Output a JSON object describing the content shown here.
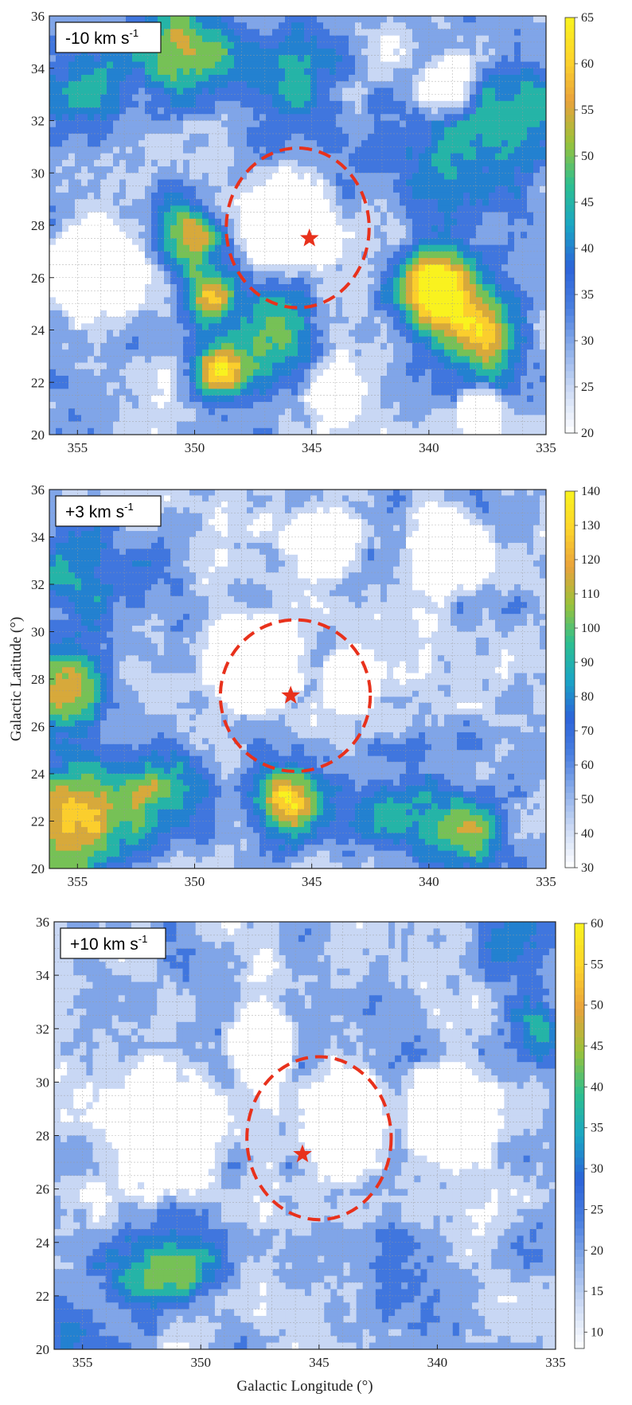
{
  "chart_data": [
    {
      "type": "heatmap",
      "panel_label": "-10 km s",
      "panel_label_sup": "-1",
      "xlabel": "",
      "ylabel": "",
      "xlim": [
        356.2,
        335
      ],
      "ylim": [
        20,
        36
      ],
      "xticks": [
        355,
        350,
        345,
        340,
        335
      ],
      "yticks": [
        20,
        22,
        24,
        26,
        28,
        30,
        32,
        34,
        36
      ],
      "colorbar": {
        "min": 20,
        "max": 65,
        "ticks": [
          20,
          25,
          30,
          35,
          40,
          45,
          50,
          55,
          60,
          65
        ]
      },
      "circle": {
        "center_l": 345.6,
        "center_b": 27.9,
        "radius_deg": 3.05,
        "color": "#e8311c"
      },
      "star": {
        "l": 345.1,
        "b": 27.5,
        "color": "#e8311c"
      },
      "grid": true,
      "features": [
        {
          "l": 350.2,
          "b": 27.6,
          "amp": 28,
          "s": 0.9
        },
        {
          "l": 349.4,
          "b": 25.2,
          "amp": 28,
          "s": 0.8
        },
        {
          "l": 348.9,
          "b": 22.6,
          "amp": 38,
          "s": 0.8
        },
        {
          "l": 346.5,
          "b": 23.8,
          "amp": 22,
          "s": 1.2
        },
        {
          "l": 339.6,
          "b": 25.6,
          "amp": 40,
          "s": 1.2
        },
        {
          "l": 337.7,
          "b": 23.7,
          "amp": 32,
          "s": 1.1
        },
        {
          "l": 345.8,
          "b": 33.6,
          "amp": 18,
          "s": 1.6
        },
        {
          "l": 350.5,
          "b": 34.8,
          "amp": 24,
          "s": 1.4
        },
        {
          "l": 354.5,
          "b": 33.2,
          "amp": 14,
          "s": 1.6
        },
        {
          "l": 338.5,
          "b": 30.6,
          "amp": 16,
          "s": 1.6
        },
        {
          "l": 335.8,
          "b": 33.0,
          "amp": 14,
          "s": 1.4
        }
      ],
      "voids": [
        {
          "l": 346.0,
          "b": 28.2,
          "r": 2.6
        },
        {
          "l": 354.2,
          "b": 26.2,
          "r": 2.4
        },
        {
          "l": 339.2,
          "b": 33.3,
          "r": 1.6
        },
        {
          "l": 343.8,
          "b": 21.5,
          "r": 1.8
        },
        {
          "l": 337.8,
          "b": 21.0,
          "r": 1.2
        }
      ]
    },
    {
      "type": "heatmap",
      "panel_label": "+3 km s",
      "panel_label_sup": "-1",
      "xlabel": "",
      "ylabel": "Galactic Latitude (°)",
      "xlim": [
        356.2,
        335
      ],
      "ylim": [
        20,
        36
      ],
      "xticks": [
        355,
        350,
        345,
        340,
        335
      ],
      "yticks": [
        20,
        22,
        24,
        26,
        28,
        30,
        32,
        34,
        36
      ],
      "colorbar": {
        "min": 30,
        "max": 140,
        "ticks": [
          30,
          40,
          50,
          60,
          70,
          80,
          90,
          100,
          110,
          120,
          130,
          140
        ]
      },
      "circle": {
        "center_l": 345.7,
        "center_b": 27.3,
        "radius_deg": 3.2,
        "color": "#e8311c"
      },
      "star": {
        "l": 345.9,
        "b": 27.3,
        "color": "#e8311c"
      },
      "grid": true,
      "features": [
        {
          "l": 355.2,
          "b": 22.0,
          "amp": 85,
          "s": 1.6
        },
        {
          "l": 355.5,
          "b": 27.5,
          "amp": 65,
          "s": 1.3
        },
        {
          "l": 351.3,
          "b": 23.3,
          "amp": 55,
          "s": 1.4
        },
        {
          "l": 346.0,
          "b": 22.6,
          "amp": 85,
          "s": 1.1
        },
        {
          "l": 338.3,
          "b": 21.5,
          "amp": 60,
          "s": 1.2
        },
        {
          "l": 341.5,
          "b": 22.5,
          "amp": 35,
          "s": 1.4
        },
        {
          "l": 355.0,
          "b": 32.5,
          "amp": 30,
          "s": 1.8
        }
      ],
      "voids": [
        {
          "l": 347.5,
          "b": 28.8,
          "r": 2.6
        },
        {
          "l": 343.3,
          "b": 28.0,
          "r": 1.6
        },
        {
          "l": 339.0,
          "b": 33.5,
          "r": 2.2
        },
        {
          "l": 344.5,
          "b": 33.8,
          "r": 2.0
        }
      ]
    },
    {
      "type": "heatmap",
      "panel_label": "+10 km s",
      "panel_label_sup": "-1",
      "xlabel": "Galactic Longitude (°)",
      "ylabel": "",
      "xlim": [
        356.2,
        335
      ],
      "ylim": [
        20,
        36
      ],
      "xticks": [
        355,
        350,
        345,
        340,
        335
      ],
      "yticks": [
        20,
        22,
        24,
        26,
        28,
        30,
        32,
        34,
        36
      ],
      "colorbar": {
        "min": 8,
        "max": 60,
        "ticks": [
          10,
          15,
          20,
          25,
          30,
          35,
          40,
          45,
          50,
          55,
          60
        ]
      },
      "circle": {
        "center_l": 345.0,
        "center_b": 27.9,
        "radius_deg": 3.05,
        "color": "#e8311c"
      },
      "star": {
        "l": 345.7,
        "b": 27.3,
        "color": "#e8311c"
      },
      "grid": true,
      "features": [
        {
          "l": 352.5,
          "b": 23.0,
          "amp": 26,
          "s": 1.0
        },
        {
          "l": 350.5,
          "b": 23.2,
          "amp": 24,
          "s": 0.9
        },
        {
          "l": 355.5,
          "b": 21.0,
          "amp": 14,
          "s": 1.4
        },
        {
          "l": 335.5,
          "b": 31.8,
          "amp": 18,
          "s": 1.0
        },
        {
          "l": 336.8,
          "b": 35.2,
          "amp": 18,
          "s": 1.0
        },
        {
          "l": 340.5,
          "b": 22.5,
          "amp": 10,
          "s": 1.5
        }
      ],
      "voids": [
        {
          "l": 351.5,
          "b": 28.2,
          "r": 3.2
        },
        {
          "l": 344.0,
          "b": 28.5,
          "r": 2.6
        },
        {
          "l": 339.5,
          "b": 28.8,
          "r": 2.4
        },
        {
          "l": 347.5,
          "b": 31.5,
          "r": 1.8
        }
      ]
    }
  ],
  "colormap": [
    "#ffffff",
    "#cfdcf5",
    "#8fb0ea",
    "#4a7fe0",
    "#2b63d9",
    "#1aa6c4",
    "#2dbf8f",
    "#9ac23a",
    "#e9a23b",
    "#fdd42b",
    "#f9f21f"
  ]
}
